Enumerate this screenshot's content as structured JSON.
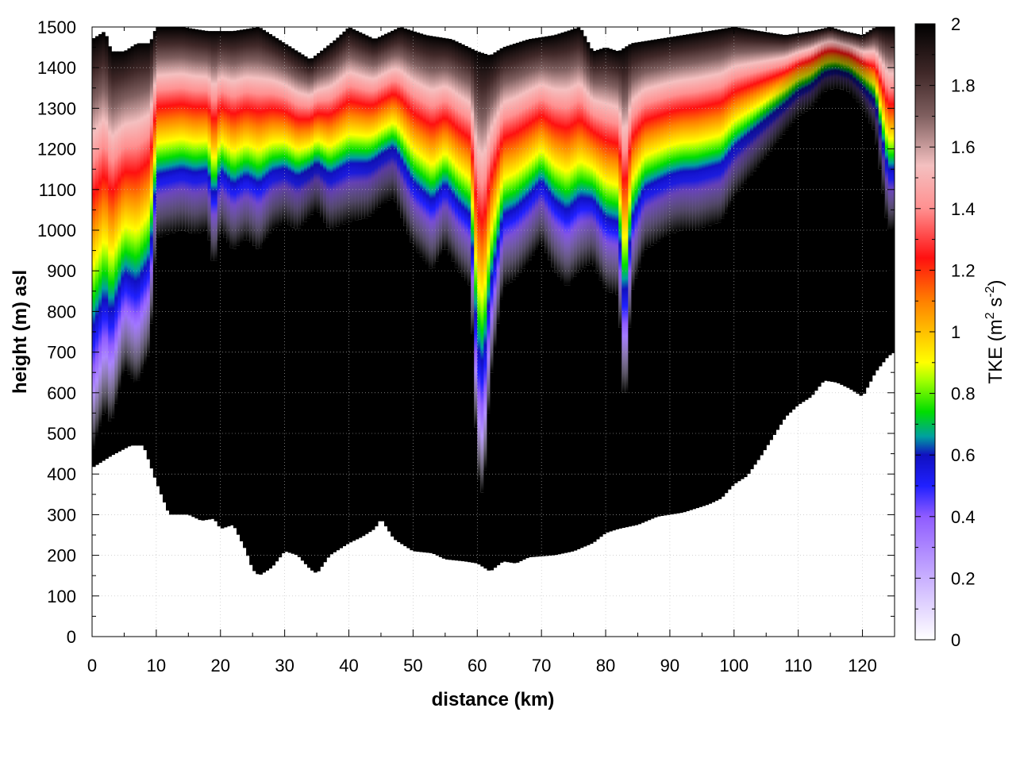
{
  "chart_data": {
    "type": "heatmap",
    "title": "",
    "xlabel": "distance (km)",
    "ylabel": "height (m) asl",
    "xlim": [
      0,
      125
    ],
    "ylim": [
      0,
      1500
    ],
    "x_ticks": [
      0,
      10,
      20,
      30,
      40,
      50,
      60,
      70,
      80,
      90,
      100,
      110,
      120
    ],
    "y_ticks": [
      0,
      100,
      200,
      300,
      400,
      500,
      600,
      700,
      800,
      900,
      1000,
      1100,
      1200,
      1300,
      1400,
      1500
    ],
    "grid": true,
    "colorbar": {
      "label": "TKE (m",
      "label_sup1": "2",
      "label_mid": " s",
      "label_sup2": "-2",
      "label_end": ")",
      "range": [
        0,
        2
      ],
      "ticks": [
        "0",
        "0.2",
        "0.4",
        "0.6",
        "0.8",
        "1",
        "1.2",
        "1.4",
        "1.6",
        "1.8",
        "2"
      ],
      "palette": [
        [
          0.0,
          "#ffffff"
        ],
        [
          0.1,
          "#c9b0ff"
        ],
        [
          0.2,
          "#8f5cff"
        ],
        [
          0.25,
          "#2020ff"
        ],
        [
          0.3,
          "#1010c0"
        ],
        [
          0.33,
          "#00a0a0"
        ],
        [
          0.37,
          "#00dd00"
        ],
        [
          0.42,
          "#a0ff00"
        ],
        [
          0.45,
          "#ffff00"
        ],
        [
          0.5,
          "#ffc000"
        ],
        [
          0.55,
          "#ff8000"
        ],
        [
          0.62,
          "#ff1010"
        ],
        [
          0.7,
          "#ff9090"
        ],
        [
          0.77,
          "#f4c0c0"
        ],
        [
          0.85,
          "#806060"
        ],
        [
          0.92,
          "#402828"
        ],
        [
          1.0,
          "#000000"
        ]
      ]
    },
    "terrain_height": [
      [
        0,
        415
      ],
      [
        3,
        445
      ],
      [
        6,
        470
      ],
      [
        8,
        470
      ],
      [
        10,
        380
      ],
      [
        12,
        300
      ],
      [
        15,
        300
      ],
      [
        17,
        285
      ],
      [
        19,
        290
      ],
      [
        20,
        265
      ],
      [
        22,
        275
      ],
      [
        24,
        210
      ],
      [
        25,
        165
      ],
      [
        26,
        150
      ],
      [
        28,
        170
      ],
      [
        30,
        210
      ],
      [
        32,
        200
      ],
      [
        34,
        165
      ],
      [
        35,
        155
      ],
      [
        37,
        200
      ],
      [
        40,
        230
      ],
      [
        42,
        245
      ],
      [
        44,
        265
      ],
      [
        45,
        290
      ],
      [
        47,
        240
      ],
      [
        50,
        210
      ],
      [
        53,
        205
      ],
      [
        55,
        190
      ],
      [
        58,
        185
      ],
      [
        60,
        180
      ],
      [
        62,
        160
      ],
      [
        64,
        185
      ],
      [
        66,
        180
      ],
      [
        68,
        195
      ],
      [
        72,
        200
      ],
      [
        75,
        210
      ],
      [
        78,
        230
      ],
      [
        80,
        255
      ],
      [
        82,
        265
      ],
      [
        85,
        275
      ],
      [
        88,
        295
      ],
      [
        92,
        305
      ],
      [
        96,
        325
      ],
      [
        98,
        340
      ],
      [
        100,
        375
      ],
      [
        102,
        395
      ],
      [
        104,
        440
      ],
      [
        106,
        490
      ],
      [
        108,
        540
      ],
      [
        110,
        570
      ],
      [
        112,
        590
      ],
      [
        114,
        630
      ],
      [
        116,
        625
      ],
      [
        118,
        610
      ],
      [
        120,
        590
      ],
      [
        122,
        650
      ],
      [
        124,
        690
      ],
      [
        125,
        700
      ]
    ],
    "boundary_layer_top": [
      [
        0,
        450
      ],
      [
        2,
        560
      ],
      [
        3,
        520
      ],
      [
        5,
        660
      ],
      [
        7,
        620
      ],
      [
        9,
        700
      ],
      [
        10,
        980
      ],
      [
        12,
        990
      ],
      [
        14,
        1000
      ],
      [
        16,
        990
      ],
      [
        18,
        1000
      ],
      [
        19,
        900
      ],
      [
        20,
        1000
      ],
      [
        22,
        950
      ],
      [
        24,
        980
      ],
      [
        26,
        950
      ],
      [
        28,
        1000
      ],
      [
        30,
        1020
      ],
      [
        32,
        1000
      ],
      [
        35,
        1050
      ],
      [
        37,
        1000
      ],
      [
        40,
        1020
      ],
      [
        43,
        1030
      ],
      [
        45,
        1060
      ],
      [
        47,
        1080
      ],
      [
        50,
        960
      ],
      [
        53,
        900
      ],
      [
        55,
        960
      ],
      [
        57,
        900
      ],
      [
        59,
        860
      ],
      [
        60,
        400
      ],
      [
        61,
        340
      ],
      [
        62,
        620
      ],
      [
        64,
        860
      ],
      [
        66,
        880
      ],
      [
        68,
        920
      ],
      [
        70,
        970
      ],
      [
        72,
        900
      ],
      [
        74,
        860
      ],
      [
        76,
        900
      ],
      [
        78,
        920
      ],
      [
        80,
        850
      ],
      [
        82,
        840
      ],
      [
        83,
        520
      ],
      [
        84,
        840
      ],
      [
        86,
        950
      ],
      [
        88,
        970
      ],
      [
        90,
        990
      ],
      [
        92,
        1000
      ],
      [
        94,
        1000
      ],
      [
        96,
        1010
      ],
      [
        98,
        1020
      ],
      [
        100,
        1080
      ],
      [
        102,
        1120
      ],
      [
        104,
        1160
      ],
      [
        106,
        1200
      ],
      [
        108,
        1240
      ],
      [
        110,
        1280
      ],
      [
        112,
        1300
      ],
      [
        114,
        1340
      ],
      [
        116,
        1350
      ],
      [
        118,
        1340
      ],
      [
        120,
        1300
      ],
      [
        122,
        1240
      ],
      [
        124,
        1000
      ],
      [
        125,
        1000
      ]
    ],
    "column_top": [
      [
        0,
        1470
      ],
      [
        2,
        1490
      ],
      [
        3,
        1440
      ],
      [
        5,
        1440
      ],
      [
        7,
        1460
      ],
      [
        9,
        1460
      ],
      [
        10,
        1500
      ],
      [
        14,
        1500
      ],
      [
        18,
        1490
      ],
      [
        22,
        1490
      ],
      [
        26,
        1500
      ],
      [
        30,
        1460
      ],
      [
        34,
        1420
      ],
      [
        38,
        1470
      ],
      [
        40,
        1500
      ],
      [
        44,
        1470
      ],
      [
        48,
        1500
      ],
      [
        52,
        1480
      ],
      [
        56,
        1470
      ],
      [
        60,
        1440
      ],
      [
        62,
        1430
      ],
      [
        64,
        1450
      ],
      [
        68,
        1470
      ],
      [
        72,
        1480
      ],
      [
        76,
        1500
      ],
      [
        78,
        1440
      ],
      [
        80,
        1450
      ],
      [
        82,
        1440
      ],
      [
        84,
        1460
      ],
      [
        88,
        1470
      ],
      [
        92,
        1480
      ],
      [
        96,
        1490
      ],
      [
        100,
        1500
      ],
      [
        104,
        1490
      ],
      [
        108,
        1480
      ],
      [
        112,
        1490
      ],
      [
        115,
        1500
      ],
      [
        117,
        1490
      ],
      [
        120,
        1480
      ],
      [
        122,
        1500
      ],
      [
        125,
        1500
      ]
    ]
  }
}
